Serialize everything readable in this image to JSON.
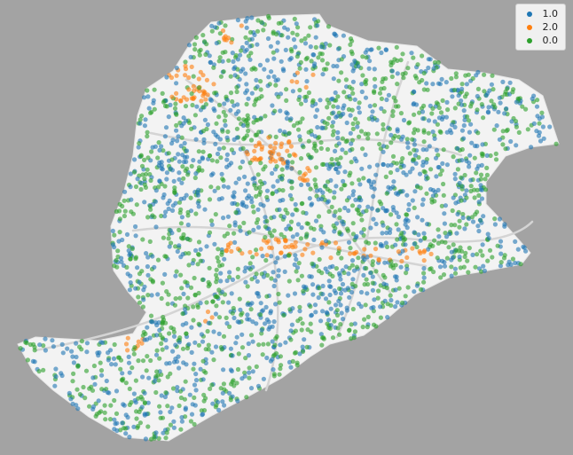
{
  "legend": {
    "placement": "top-right",
    "items": [
      {
        "label": "1.0",
        "color": "#1f77b4"
      },
      {
        "label": "2.0",
        "color": "#ff7f0e"
      },
      {
        "label": "0.0",
        "color": "#2ca02c"
      }
    ]
  },
  "map_style": {
    "background": "#a3a3a3",
    "land": "#f3f3f3",
    "roads": "#d6d6d6",
    "marker_alpha": 0.6
  }
}
